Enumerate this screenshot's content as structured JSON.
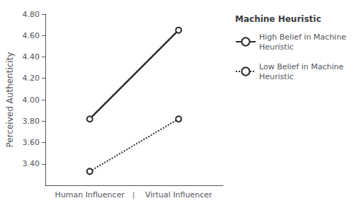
{
  "chart_data": {
    "type": "line",
    "categories": [
      "Human Influencer",
      "Virtual Influencer"
    ],
    "annotations": [
      "|"
    ],
    "series": [
      {
        "name": "High Belief in Machine\nHeuristic",
        "color": "#2b2b2b",
        "values": [
          3.82,
          4.65
        ],
        "line_style": "solid",
        "marker": "open_circle"
      },
      {
        "name": "Low Belief in Machine\nHeuristic",
        "color": "#2b2b2b",
        "values": [
          3.33,
          3.82
        ],
        "line_style": "dotted",
        "marker": "open_circle"
      }
    ],
    "ylabel": "Perceived Authenticity",
    "ylim": [
      3.2,
      4.8
    ],
    "yticks": [
      {
        "value": 3.4,
        "label": "3.40"
      },
      {
        "value": 3.6,
        "label": "3.60"
      },
      {
        "value": 3.8,
        "label": "3.80"
      },
      {
        "value": 4.0,
        "label": "4.00"
      },
      {
        "value": 4.2,
        "label": "4.20"
      },
      {
        "value": 4.4,
        "label": "4.40"
      },
      {
        "value": 4.6,
        "label": "4.60"
      },
      {
        "value": 4.8,
        "label": "4.80"
      }
    ],
    "legend_title": "Machine Heuristic",
    "legend": "right",
    "grid": false
  }
}
